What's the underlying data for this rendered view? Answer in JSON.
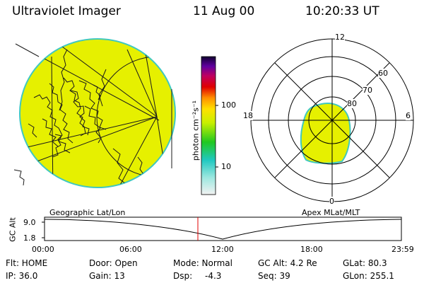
{
  "header": {
    "instrument": "Ultraviolet Imager",
    "date": "11 Aug 00",
    "time": "10:20:33 UT"
  },
  "colorbar": {
    "unit_label": "photon cm⁻²s⁻¹",
    "ticks": [
      "100",
      "10"
    ]
  },
  "polar_plot": {
    "labels": {
      "top": "12",
      "left": "18",
      "right": "6",
      "bottom": "0"
    },
    "lat_labels": [
      "60",
      "70",
      "80"
    ]
  },
  "map_caption_left": "Geographic Lat/Lon",
  "map_caption_right": "Apex MLat/MLT",
  "altitude_plot": {
    "axis_label": "GC Alt",
    "y_ticks": [
      "9.0",
      "1.8"
    ],
    "x_ticks": [
      "00:00",
      "06:00",
      "12:00",
      "18:00",
      "23:59"
    ],
    "current_time_marker": "10:20"
  },
  "info": {
    "flt": "Flt: HOME",
    "ip": "IP: 36.0",
    "door": "Door: Open",
    "gain": "Gain: 13",
    "mode": "Mode: Normal",
    "dsp": "Dsp:",
    "dsp_value": "-4.3",
    "gc_alt": "GC Alt: 4.2 Re",
    "seq": "Seq: 39",
    "glat": "GLat: 80.3",
    "glon": "GLon: 255.1"
  },
  "colors": {
    "aurora_fill": "#e6f000",
    "edge": "#40c8c0",
    "marker": "#e00000"
  }
}
